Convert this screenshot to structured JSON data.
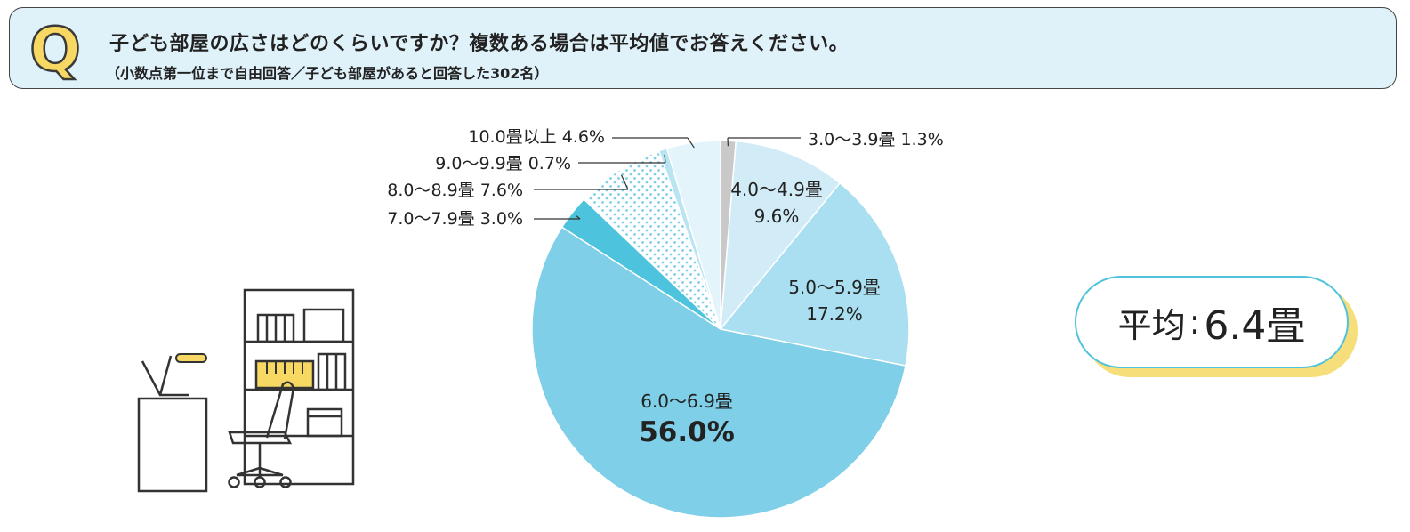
{
  "question": {
    "mark": "Q",
    "title": "子ども部屋の広さはどのくらいですか？複数ある場合は平均値でお答えください。",
    "note": "（小数点第一位まで自由回答／子ども部屋があると回答した302名）"
  },
  "average": {
    "label": "平均",
    "colon": ":",
    "value": "6.4畳"
  },
  "chart_data": {
    "type": "pie",
    "unit": "%",
    "start_angle_deg": 0,
    "direction": "clockwise",
    "slices": [
      {
        "label": "3.0〜3.9畳",
        "value": 1.3,
        "value_text": "1.3%",
        "color": "#c9c9c9",
        "label_position": "outside"
      },
      {
        "label": "4.0〜4.9畳",
        "value": 9.6,
        "value_text": "9.6%",
        "color": "#d2ecf7",
        "label_position": "inside"
      },
      {
        "label": "5.0〜5.9畳",
        "value": 17.2,
        "value_text": "17.2%",
        "color": "#a9dff0",
        "label_position": "inside"
      },
      {
        "label": "6.0〜6.9畳",
        "value": 56.0,
        "value_text": "56.0%",
        "color": "#7ecfe7",
        "label_position": "inside",
        "emphasis": true
      },
      {
        "label": "7.0〜7.9畳",
        "value": 3.0,
        "value_text": "3.0%",
        "color": "#4ec3dd",
        "label_position": "outside"
      },
      {
        "label": "8.0〜8.9畳",
        "value": 7.6,
        "value_text": "7.6%",
        "color": "#ffffff",
        "pattern": "dots",
        "label_position": "outside"
      },
      {
        "label": "9.0〜9.9畳",
        "value": 0.7,
        "value_text": "0.7%",
        "color": "#b9e4f2",
        "label_position": "outside"
      },
      {
        "label": "10.0畳以上",
        "value": 4.6,
        "value_text": "4.6%",
        "color": "#e3f4fb",
        "label_position": "outside"
      }
    ]
  }
}
